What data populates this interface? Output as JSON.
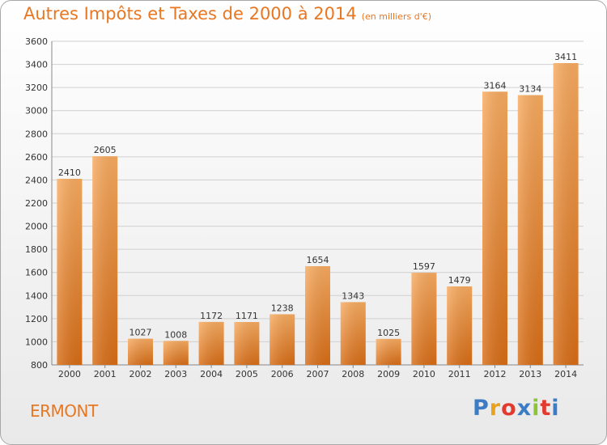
{
  "header": {
    "title": "Autres Impôts et Taxes de 2000 à 2014",
    "subtitle": "(en milliers d'€)"
  },
  "footer": {
    "place": "ERMONT",
    "logo_letters": [
      "P",
      "r",
      "o",
      "x",
      "i",
      "t",
      "i"
    ],
    "logo_colors": [
      "#3b7cc4",
      "#e8a21c",
      "#e23a2e",
      "#3b7cc4",
      "#8cc43c",
      "#e23a2e",
      "#3b7cc4"
    ]
  },
  "colors": {
    "title": "#e87722",
    "bar_light": "#f8ab60",
    "bar_dark": "#d86d16",
    "grid": "#d0d0d0",
    "text": "#333333"
  },
  "chart_data": {
    "type": "bar",
    "title": "Autres Impôts et Taxes de 2000 à 2014",
    "subtitle": "(en milliers d'€)",
    "categories": [
      "2000",
      "2001",
      "2002",
      "2003",
      "2004",
      "2005",
      "2006",
      "2007",
      "2008",
      "2009",
      "2010",
      "2011",
      "2012",
      "2013",
      "2014"
    ],
    "values": [
      2410,
      2605,
      1027,
      1008,
      1172,
      1171,
      1238,
      1654,
      1343,
      1025,
      1597,
      1479,
      3164,
      3134,
      3411
    ],
    "ylim": [
      800,
      3600
    ],
    "yticks": [
      800,
      1000,
      1200,
      1400,
      1600,
      1800,
      2000,
      2200,
      2400,
      2600,
      2800,
      3000,
      3200,
      3400,
      3600
    ],
    "grid": true,
    "legend": "none"
  }
}
